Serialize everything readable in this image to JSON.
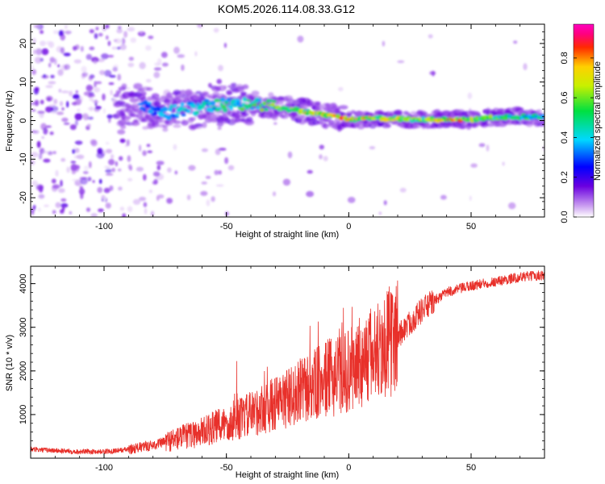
{
  "title": "KOM5.2026.114.08.33.G12",
  "chart_data": [
    {
      "type": "heatmap",
      "title": "KOM5.2026.114.08.33.G12",
      "xlabel": "Height of straight line (km)",
      "ylabel": "Frequency (Hz)",
      "xlim": [
        -130,
        80
      ],
      "ylim": [
        -25,
        25
      ],
      "xticks": [
        -100,
        -50,
        0,
        50
      ],
      "yticks": [
        -20,
        -10,
        0,
        10,
        20
      ],
      "colorbar": {
        "label": "Normalized spectral amplitude",
        "range": [
          0,
          0.97
        ],
        "ticks": [
          0.0,
          0.2,
          0.4,
          0.6,
          0.8
        ],
        "tick_labels": [
          "0.0",
          "0.2",
          "0.4",
          "0.6",
          "0.8"
        ]
      },
      "ridge": {
        "x": [
          -85,
          -75,
          -65,
          -55,
          -45,
          -35,
          -25,
          -15,
          -5,
          0,
          10,
          20,
          30,
          40,
          50,
          60,
          70,
          80
        ],
        "frequency": [
          4,
          2,
          3,
          4,
          4.5,
          4,
          3,
          2,
          1,
          0.3,
          0.5,
          0.5,
          0.3,
          0.3,
          0.3,
          0.8,
          1,
          1
        ],
        "amplitude": [
          0.3,
          0.4,
          0.45,
          0.5,
          0.55,
          0.6,
          0.7,
          0.75,
          0.8,
          0.85,
          0.75,
          0.7,
          0.65,
          0.9,
          0.8,
          0.6,
          0.55,
          0.5
        ]
      }
    },
    {
      "type": "line",
      "xlabel": "Height of straight line (km)",
      "ylabel": "SNR (10 * v/v)",
      "xlim": [
        -130,
        80
      ],
      "ylim": [
        0,
        4400
      ],
      "xticks": [
        -100,
        -50,
        0,
        50
      ],
      "yticks": [
        1000,
        2000,
        3000,
        4000
      ],
      "series": [
        {
          "name": "SNR",
          "color": "#e8302a",
          "x": [
            -130,
            -110,
            -100,
            -90,
            -80,
            -70,
            -60,
            -50,
            -40,
            -30,
            -20,
            -10,
            0,
            10,
            20,
            30,
            40,
            50,
            60,
            70,
            80
          ],
          "y": [
            200,
            150,
            150,
            200,
            300,
            450,
            600,
            800,
            1000,
            1250,
            1500,
            1800,
            2000,
            2400,
            2800,
            3400,
            3800,
            3950,
            4050,
            4150,
            4200
          ]
        }
      ]
    }
  ]
}
